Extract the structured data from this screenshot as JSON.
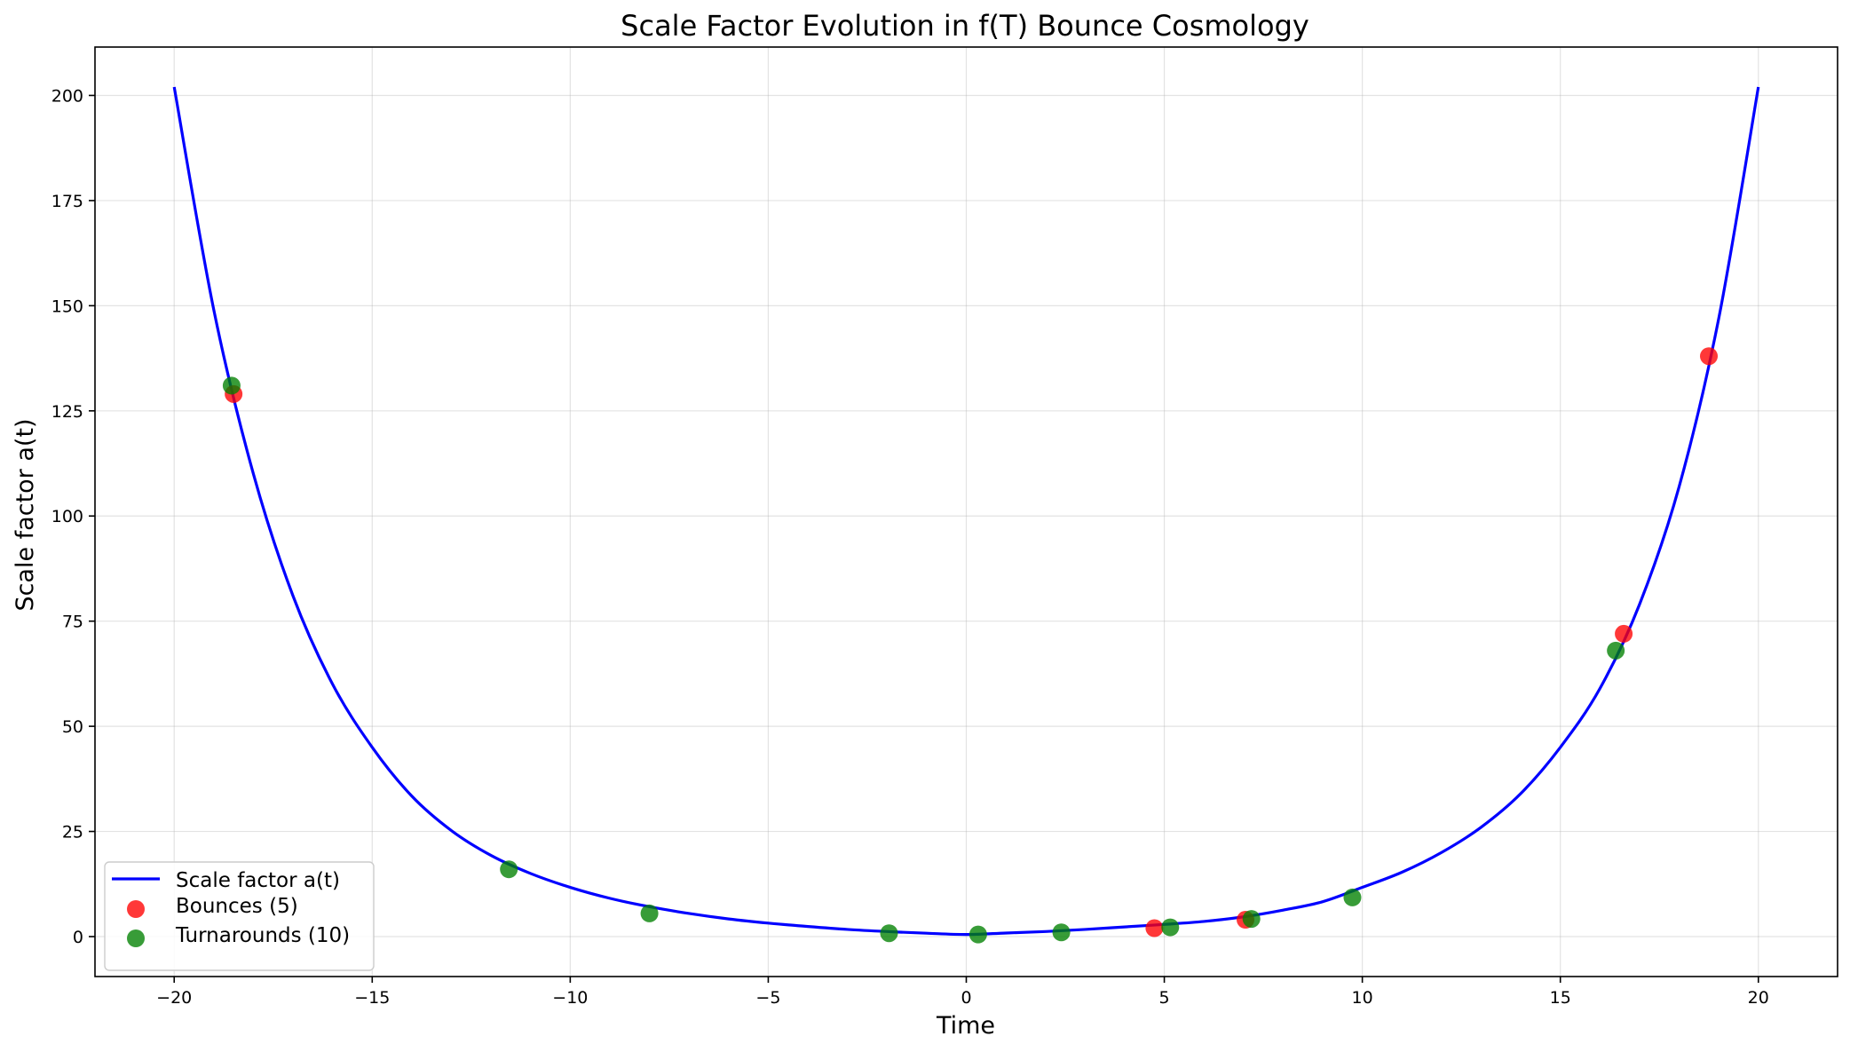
{
  "chart_data": {
    "type": "line",
    "title": "Scale Factor Evolution in f(T) Bounce Cosmology",
    "xlabel": "Time",
    "ylabel": "Scale factor a(t)",
    "xlim": [
      -22,
      22
    ],
    "ylim": [
      -9.5,
      211.5
    ],
    "x_ticks": [
      -20,
      -15,
      -10,
      -5,
      0,
      5,
      10,
      15,
      20
    ],
    "x_tick_labels": [
      "−20",
      "−15",
      "−10",
      "−5",
      "0",
      "5",
      "10",
      "15",
      "20"
    ],
    "y_ticks": [
      0,
      25,
      50,
      75,
      100,
      125,
      150,
      175,
      200
    ],
    "y_tick_labels": [
      "0",
      "25",
      "50",
      "75",
      "100",
      "125",
      "150",
      "175",
      "200"
    ],
    "grid": true,
    "legend_position": "lower-left",
    "series": [
      {
        "name": "Scale factor a(t)",
        "kind": "line",
        "color": "#0000ff",
        "x": [
          -20,
          -19,
          -18,
          -17,
          -16,
          -15,
          -14,
          -13,
          -12,
          -11,
          -10,
          -9,
          -8,
          -7,
          -6,
          -5,
          -4,
          -3,
          -2,
          -1,
          0,
          1,
          2,
          3,
          4,
          5,
          6,
          7,
          8,
          9,
          10,
          11,
          12,
          13,
          14,
          15,
          16,
          17,
          18,
          19,
          20
        ],
        "y": [
          202,
          149,
          110,
          81,
          60,
          45,
          33.4,
          25.2,
          19.3,
          15,
          11.7,
          9.1,
          7.1,
          5.5,
          4.2,
          3.2,
          2.4,
          1.7,
          1.2,
          0.8,
          0.5,
          0.85,
          1.2,
          1.7,
          2.3,
          2.9,
          3.6,
          4.7,
          6.3,
          8.3,
          11.7,
          15.3,
          20,
          26,
          34,
          45,
          59,
          79,
          107,
          147,
          202
        ]
      },
      {
        "name": "Bounces (5)",
        "kind": "scatter",
        "color": "#ff0000",
        "x": [
          -18.5,
          4.75,
          7.05,
          16.6,
          18.75
        ],
        "y": [
          129,
          2,
          4,
          72,
          138
        ]
      },
      {
        "name": "Turnarounds (10)",
        "kind": "scatter",
        "color": "#008000",
        "x": [
          -18.55,
          -11.55,
          -8.0,
          -1.95,
          0.3,
          2.4,
          5.15,
          7.2,
          9.75,
          16.4
        ],
        "y": [
          131,
          16,
          5.5,
          0.8,
          0.5,
          1,
          2.2,
          4.2,
          9.3,
          68
        ]
      }
    ]
  }
}
